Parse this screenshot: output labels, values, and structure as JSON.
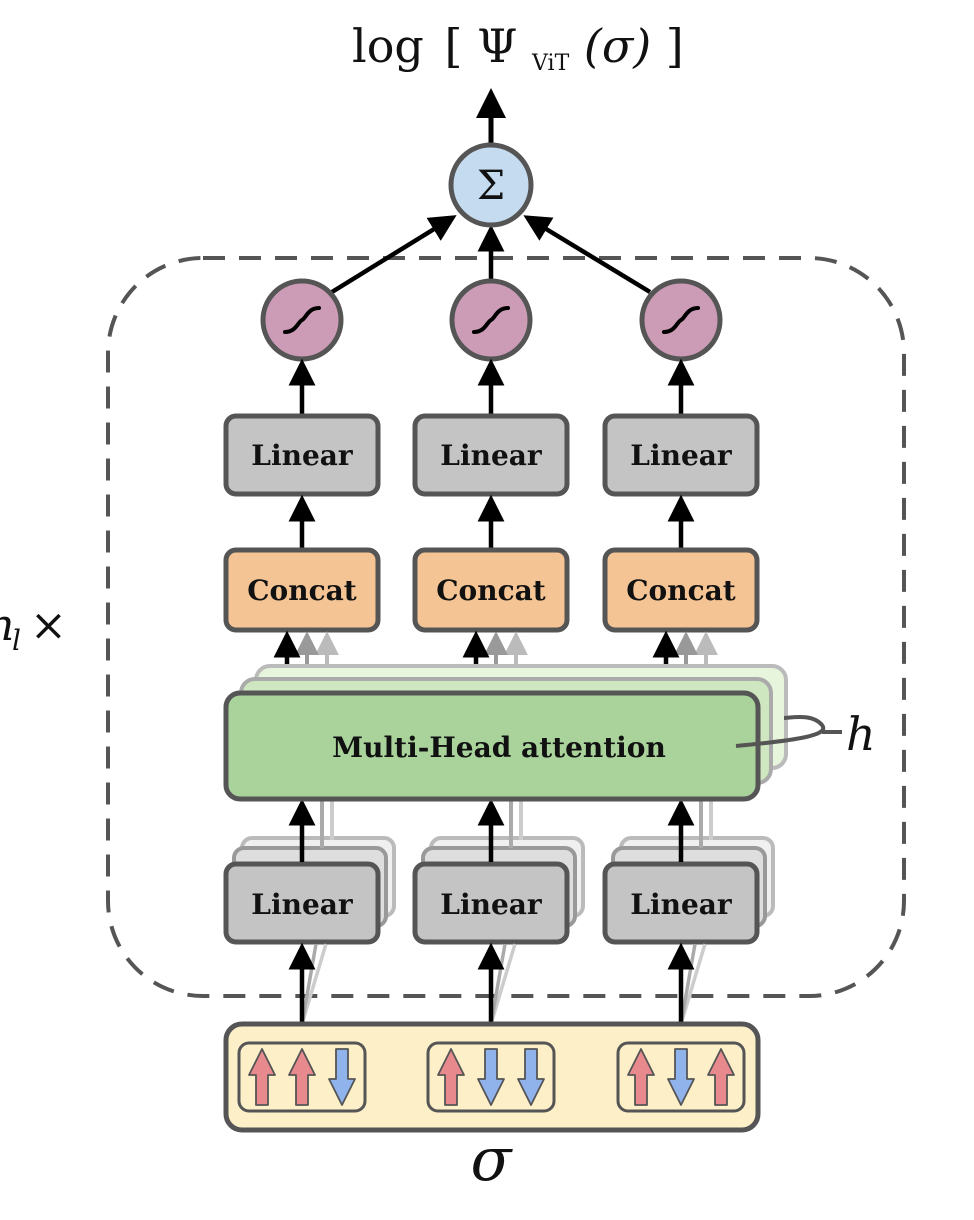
{
  "output_label": {
    "prefix": "log",
    "open": "[",
    "psi": "Ψ",
    "subscript": "ViT",
    "arg": "(σ)",
    "close": "]"
  },
  "sum_symbol": "Σ",
  "repeat_label": "n",
  "repeat_sub": "l",
  "repeat_times": "×",
  "heads_label": "h",
  "input_label": "σ",
  "attention_label": "Multi-Head attention",
  "columns": [
    {
      "linear_top": "Linear",
      "concat": "Concat",
      "linear_bottom": "Linear",
      "spins": [
        "up",
        "up",
        "down"
      ]
    },
    {
      "linear_top": "Linear",
      "concat": "Concat",
      "linear_bottom": "Linear",
      "spins": [
        "up",
        "down",
        "down"
      ]
    },
    {
      "linear_top": "Linear",
      "concat": "Concat",
      "linear_bottom": "Linear",
      "spins": [
        "up",
        "down",
        "up"
      ]
    }
  ],
  "colors": {
    "sum_node": "#c5dbef",
    "activation_node": "#cc9bb6",
    "linear_box": "#c4c4c4",
    "concat_box": "#f5c494",
    "attention_box": "#a9d39b",
    "input_box": "#fdefc8",
    "spin_up": "#e88a8d",
    "spin_down": "#8fb3ea",
    "stroke": "#555555"
  }
}
